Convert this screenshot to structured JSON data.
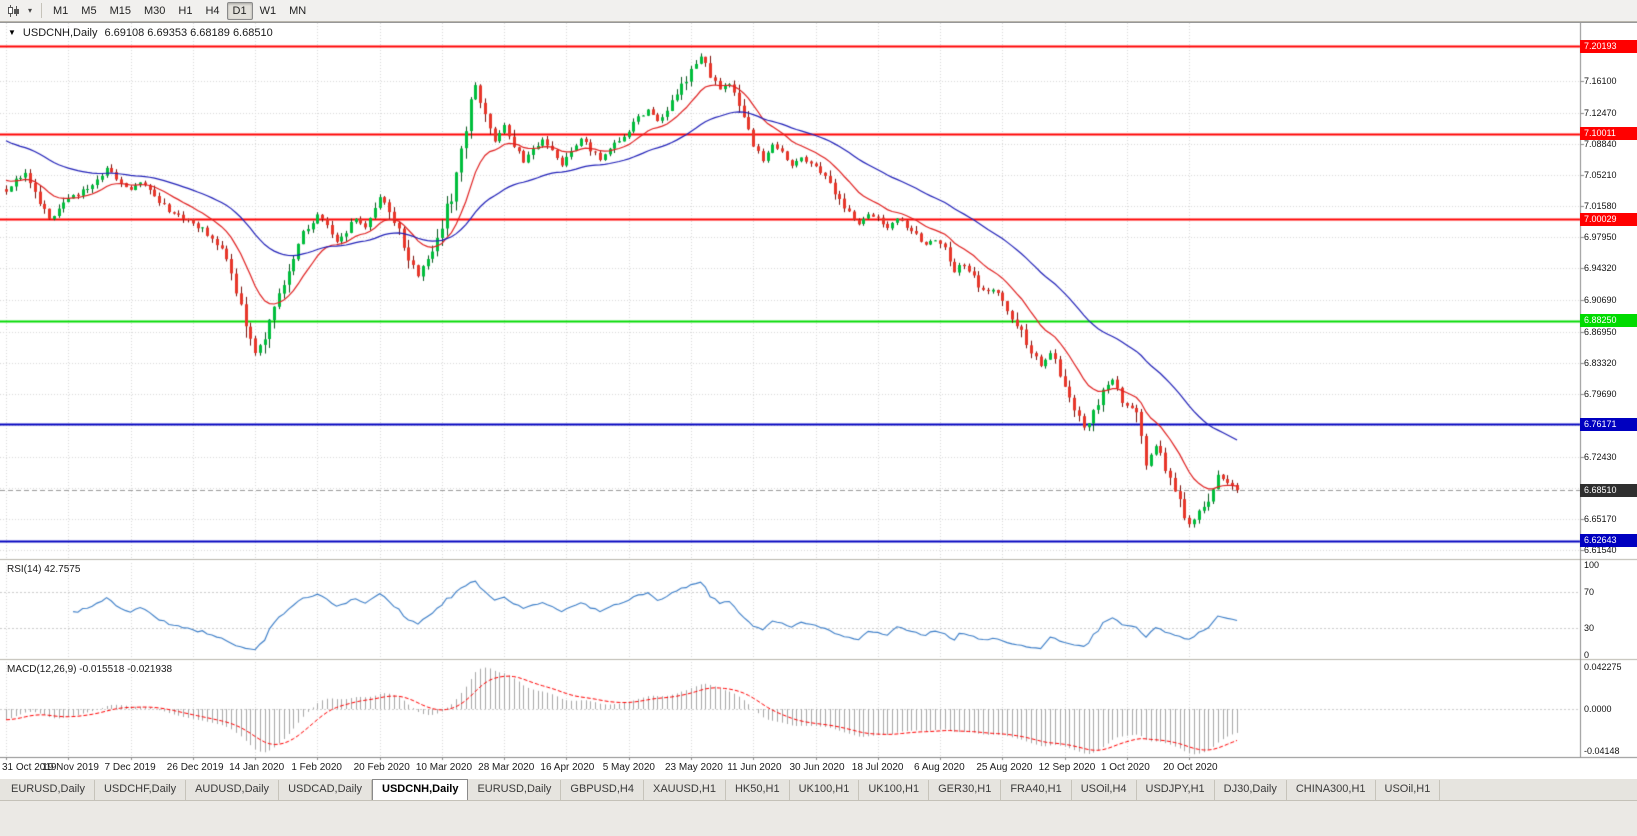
{
  "toolbar": {
    "timeframes": [
      "M1",
      "M5",
      "M15",
      "M30",
      "H1",
      "H4",
      "D1",
      "W1",
      "MN"
    ],
    "active_timeframe": "D1",
    "chart_icon": "candlestick-chart-icon",
    "dropdown_icon": "chevron-down-icon"
  },
  "header": {
    "menu_arrow": "▼",
    "symbol_label": "USDCNH,Daily",
    "ohlc_text": "6.69108 6.69353 6.68189 6.68510"
  },
  "chart_data": {
    "type": "candlestick",
    "symbol": "USDCNH",
    "timeframe": "Daily",
    "ohlc": {
      "open": 6.69108,
      "high": 6.69353,
      "low": 6.68189,
      "close": 6.6851
    },
    "up_color": "#00BE3C",
    "down_color": "#E8362A",
    "up_wick_color": "#0a5a20",
    "down_wick_color": "#7a120c",
    "grid_color": "#d8d8d8",
    "price_axis": {
      "min": 6.605,
      "max": 7.229,
      "tick_values": [
        7.161,
        7.1247,
        7.0884,
        7.0521,
        7.0158,
        6.9795,
        6.9432,
        6.9069,
        6.8695,
        6.8332,
        6.7969,
        6.7606,
        6.7243,
        6.688,
        6.6517,
        6.6154
      ],
      "tick_labels": [
        "7.16100",
        "7.12470",
        "7.08840",
        "7.05210",
        "7.01580",
        "6.97950",
        "6.94320",
        "6.90690",
        "6.86950",
        "6.83320",
        "6.79690",
        "",
        "6.72430",
        "",
        "6.65170",
        "6.61540"
      ]
    },
    "levels": [
      {
        "value": 7.20193,
        "label": "7.20193",
        "color": "#FF0000",
        "width": 2
      },
      {
        "value": 7.10011,
        "label": "7.10011",
        "color": "#FF0000",
        "width": 2
      },
      {
        "value": 7.00029,
        "label": "7.00029",
        "color": "#FF0000",
        "width": 2
      },
      {
        "value": 6.8825,
        "label": "6.88250",
        "color": "#00DB00",
        "width": 2
      },
      {
        "value": 6.76171,
        "label": "6.76171",
        "color": "#0000C0",
        "width": 2
      },
      {
        "value": 6.62643,
        "label": "6.62643",
        "color": "#0000C0",
        "width": 2
      }
    ],
    "current_price": {
      "value": 6.6851,
      "label": "6.68510",
      "badge_color": "#2F2F2F",
      "line_color": "#9a9a9a"
    },
    "x_axis": {
      "labels": [
        "31 Oct 2019",
        "19 Nov 2019",
        "7 Dec 2019",
        "26 Dec 2019",
        "14 Jan 2020",
        "1 Feb 2020",
        "20 Feb 2020",
        "10 Mar 2020",
        "28 Mar 2020",
        "16 Apr 2020",
        "5 May 2020",
        "23 May 2020",
        "11 Jun 2020",
        "30 Jun 2020",
        "18 Jul 2020",
        "6 Aug 2020",
        "25 Aug 2020",
        "12 Sep 2020",
        "1 Oct 2020",
        "20 Oct 2020"
      ],
      "bars_per_label": 13
    },
    "bar_count": 258,
    "ma": [
      {
        "name": "ma-fast",
        "period": 13,
        "color": "#E02020",
        "seed": 7.048
      },
      {
        "name": "ma-slow",
        "period": 40,
        "color": "#2020B8",
        "seed": 7.095
      }
    ],
    "price_path_anchors": [
      [
        0,
        7.035
      ],
      [
        2,
        7.046
      ],
      [
        4,
        7.052
      ],
      [
        6,
        7.028
      ],
      [
        9,
        7.0
      ],
      [
        11,
        7.012
      ],
      [
        13,
        7.022
      ],
      [
        15,
        7.03
      ],
      [
        18,
        7.041
      ],
      [
        21,
        7.06
      ],
      [
        23,
        7.048
      ],
      [
        26,
        7.034
      ],
      [
        28,
        7.043
      ],
      [
        31,
        7.028
      ],
      [
        34,
        7.012
      ],
      [
        37,
        7.003
      ],
      [
        39,
        6.997
      ],
      [
        41,
        6.988
      ],
      [
        43,
        6.977
      ],
      [
        45,
        6.962
      ],
      [
        47,
        6.934
      ],
      [
        49,
        6.9
      ],
      [
        51,
        6.862
      ],
      [
        52,
        6.843
      ],
      [
        53,
        6.852
      ],
      [
        55,
        6.882
      ],
      [
        57,
        6.915
      ],
      [
        59,
        6.945
      ],
      [
        61,
        6.972
      ],
      [
        63,
        6.992
      ],
      [
        65,
        7.006
      ],
      [
        67,
        6.992
      ],
      [
        69,
        6.976
      ],
      [
        71,
        6.988
      ],
      [
        73,
        7.001
      ],
      [
        75,
        6.99
      ],
      [
        77,
        7.012
      ],
      [
        78,
        7.028
      ],
      [
        80,
        7.012
      ],
      [
        82,
        6.986
      ],
      [
        84,
        6.958
      ],
      [
        86,
        6.934
      ],
      [
        88,
        6.952
      ],
      [
        90,
        6.976
      ],
      [
        91,
        6.996
      ],
      [
        93,
        7.028
      ],
      [
        95,
        7.082
      ],
      [
        97,
        7.14
      ],
      [
        98,
        7.156
      ],
      [
        100,
        7.118
      ],
      [
        102,
        7.092
      ],
      [
        104,
        7.11
      ],
      [
        106,
        7.09
      ],
      [
        108,
        7.068
      ],
      [
        110,
        7.08
      ],
      [
        112,
        7.092
      ],
      [
        114,
        7.077
      ],
      [
        116,
        7.064
      ],
      [
        118,
        7.08
      ],
      [
        120,
        7.094
      ],
      [
        122,
        7.083
      ],
      [
        124,
        7.071
      ],
      [
        126,
        7.082
      ],
      [
        128,
        7.094
      ],
      [
        130,
        7.104
      ],
      [
        132,
        7.117
      ],
      [
        134,
        7.128
      ],
      [
        136,
        7.115
      ],
      [
        138,
        7.127
      ],
      [
        140,
        7.144
      ],
      [
        142,
        7.164
      ],
      [
        143,
        7.177
      ],
      [
        145,
        7.19
      ],
      [
        147,
        7.168
      ],
      [
        149,
        7.151
      ],
      [
        151,
        7.161
      ],
      [
        153,
        7.131
      ],
      [
        155,
        7.099
      ],
      [
        156,
        7.086
      ],
      [
        158,
        7.069
      ],
      [
        160,
        7.089
      ],
      [
        162,
        7.076
      ],
      [
        164,
        7.063
      ],
      [
        166,
        7.072
      ],
      [
        168,
        7.063
      ],
      [
        170,
        7.056
      ],
      [
        172,
        7.041
      ],
      [
        174,
        7.023
      ],
      [
        176,
        7.006
      ],
      [
        178,
        6.996
      ],
      [
        180,
        7.008
      ],
      [
        182,
        7.0
      ],
      [
        184,
        6.991
      ],
      [
        186,
        7.002
      ],
      [
        188,
        6.992
      ],
      [
        190,
        6.981
      ],
      [
        192,
        6.971
      ],
      [
        194,
        6.978
      ],
      [
        196,
        6.963
      ],
      [
        198,
        6.941
      ],
      [
        200,
        6.948
      ],
      [
        202,
        6.932
      ],
      [
        204,
        6.917
      ],
      [
        206,
        6.921
      ],
      [
        208,
        6.904
      ],
      [
        210,
        6.886
      ],
      [
        212,
        6.867
      ],
      [
        214,
        6.846
      ],
      [
        216,
        6.831
      ],
      [
        218,
        6.845
      ],
      [
        220,
        6.822
      ],
      [
        221,
        6.806
      ],
      [
        223,
        6.783
      ],
      [
        225,
        6.757
      ],
      [
        227,
        6.773
      ],
      [
        229,
        6.799
      ],
      [
        231,
        6.812
      ],
      [
        233,
        6.791
      ],
      [
        234,
        6.781
      ],
      [
        236,
        6.773
      ],
      [
        238,
        6.716
      ],
      [
        240,
        6.737
      ],
      [
        242,
        6.713
      ],
      [
        244,
        6.689
      ],
      [
        246,
        6.656
      ],
      [
        247,
        6.643
      ],
      [
        249,
        6.659
      ],
      [
        251,
        6.673
      ],
      [
        253,
        6.704
      ],
      [
        255,
        6.693
      ],
      [
        257,
        6.6851
      ]
    ],
    "rsi": {
      "label": "RSI(14) 42.7575",
      "value": 42.7575,
      "period": 14,
      "color": "#3C7EC8",
      "levels": [
        70,
        30
      ],
      "axis_values": [
        100,
        70,
        30,
        0
      ],
      "axis_labels": [
        "100",
        "70",
        "30",
        "0"
      ]
    },
    "macd": {
      "label": "MACD(12,26,9) -0.015518 -0.021938",
      "fast": 12,
      "slow": 26,
      "signal_period": 9,
      "main_value": -0.015518,
      "signal_value": -0.021938,
      "hist_color": "#A8A8A8",
      "signal_color": "#FF0000",
      "seed_offsets": [
        -0.004,
        0.008
      ],
      "axis_labels": [
        "0.042275",
        "0.0000",
        "-0.04148"
      ]
    }
  },
  "tabbar": {
    "tabs": [
      "EURUSD,Daily",
      "USDCHF,Daily",
      "AUDUSD,Daily",
      "USDCAD,Daily",
      "USDCNH,Daily",
      "EURUSD,Daily",
      "GBPUSD,H4",
      "XAUUSD,H1",
      "HK50,H1",
      "UK100,H1",
      "UK100,H1",
      "GER30,H1",
      "FRA40,H1",
      "USOil,H4",
      "USDJPY,H1",
      "DJ30,Daily",
      "CHINA300,H1",
      "USOil,H1"
    ],
    "active_index": 4
  }
}
